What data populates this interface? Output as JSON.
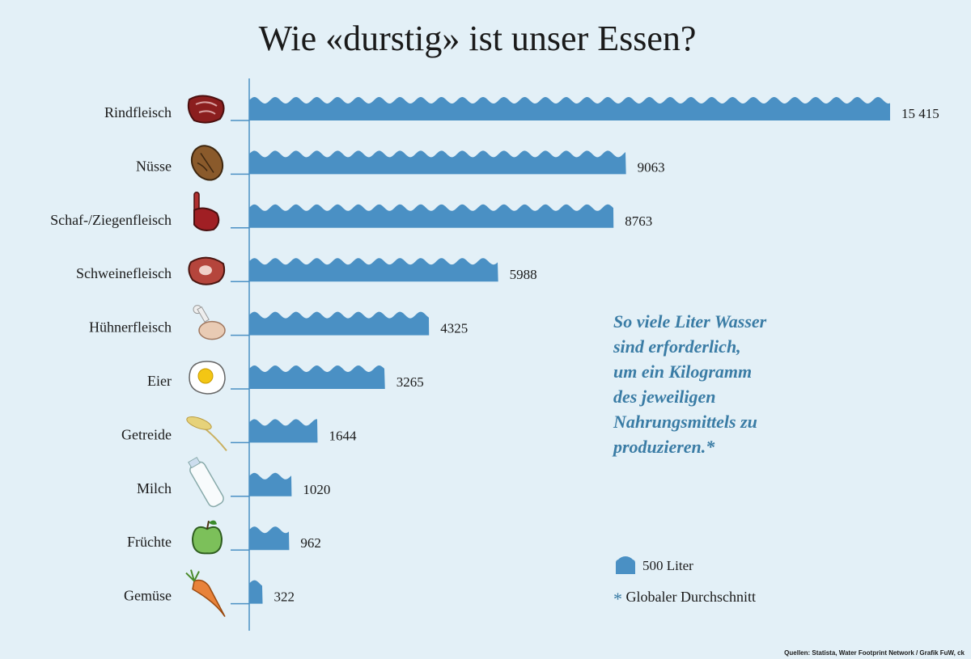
{
  "title": "Wie «durstig» ist unser Essen?",
  "chart_data": {
    "type": "bar",
    "orientation": "horizontal",
    "title": "Wie «durstig» ist unser Essen?",
    "categories": [
      "Rindfleisch",
      "Nüsse",
      "Schaf-/Ziegenfleisch",
      "Schweinefleisch",
      "Hühnerfleisch",
      "Eier",
      "Getreide",
      "Milch",
      "Früchte",
      "Gemüse"
    ],
    "values": [
      15415,
      9063,
      8763,
      5988,
      4325,
      3265,
      1644,
      1020,
      962,
      322
    ],
    "value_labels": [
      "15 415",
      "9063",
      "8763",
      "5988",
      "4325",
      "3265",
      "1644",
      "1020",
      "962",
      "322"
    ],
    "icons": [
      "beef-steak-icon",
      "walnut-icon",
      "lamb-chop-icon",
      "pork-steak-icon",
      "chicken-leg-icon",
      "fried-egg-icon",
      "wheat-icon",
      "milk-bottle-icon",
      "apple-icon",
      "carrot-icon"
    ],
    "wave_unit": 500,
    "bar_color": "#4a90c4"
  },
  "note": [
    "So viele Liter Wasser",
    "sind erforderlich,",
    "um ein Kilogramm",
    "des jeweiligen",
    "Nahrungsmittels zu",
    "produzieren.*"
  ],
  "legend": {
    "wave_label": "500 Liter",
    "star": "*",
    "star_label": "Globaler Durchschnitt"
  },
  "source": "Quellen: Statista, Water Footprint Network / Grafik FuW, ck"
}
